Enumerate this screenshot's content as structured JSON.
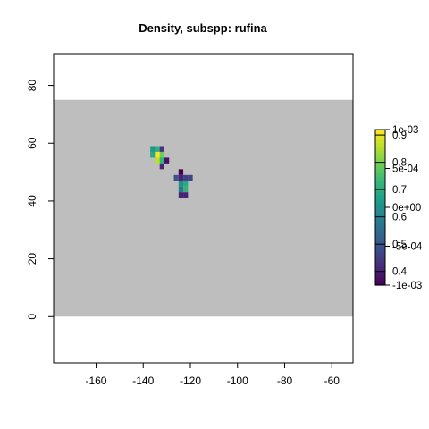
{
  "chart_data": {
    "type": "heatmap",
    "title": "Density, subspp: rufina",
    "xlabel": "",
    "ylabel": "",
    "xlim": [
      -178,
      -51
    ],
    "ylim": [
      -16,
      91
    ],
    "x_ticks": [
      -160,
      -140,
      -120,
      -100,
      -80,
      -60
    ],
    "y_ticks": [
      0,
      20,
      40,
      60,
      80
    ],
    "background_region": {
      "x": [
        -178,
        -51
      ],
      "y": [
        0,
        75
      ],
      "color": "#bebebe"
    },
    "cell_size": 2,
    "cells": [
      {
        "x": -136,
        "y": 58,
        "v": 5e-05
      },
      {
        "x": -134,
        "y": 58,
        "v": 0.00025
      },
      {
        "x": -132,
        "y": 58,
        "v": -0.0007
      },
      {
        "x": -136,
        "y": 56,
        "v": 0.0002
      },
      {
        "x": -134,
        "y": 56,
        "v": 0.001
      },
      {
        "x": -132,
        "y": 56,
        "v": 0.00055
      },
      {
        "x": -134,
        "y": 54,
        "v": 0.0008
      },
      {
        "x": -132,
        "y": 54,
        "v": 0.0003
      },
      {
        "x": -130,
        "y": 54,
        "v": -0.0009
      },
      {
        "x": -132,
        "y": 52,
        "v": -0.0008
      },
      {
        "x": -124,
        "y": 50,
        "v": -0.001
      },
      {
        "x": -124,
        "y": 48,
        "v": -0.0008
      },
      {
        "x": -122,
        "y": 48,
        "v": -0.0006
      },
      {
        "x": -120,
        "y": 48,
        "v": -0.0006
      },
      {
        "x": -126,
        "y": 48,
        "v": -0.0005
      },
      {
        "x": -124,
        "y": 46,
        "v": 0.0
      },
      {
        "x": -122,
        "y": 46,
        "v": 0.0002
      },
      {
        "x": -124,
        "y": 44,
        "v": -0.0002
      },
      {
        "x": -122,
        "y": 44,
        "v": 0.0003
      },
      {
        "x": -124,
        "y": 42,
        "v": -0.0008
      },
      {
        "x": -122,
        "y": 42,
        "v": -0.0008
      }
    ],
    "colorbar": {
      "colormap": "viridis",
      "range": [
        -0.001,
        0.001
      ],
      "labels_right": [
        "1e-03",
        "5e-04",
        "0e+00",
        "-5e-04",
        "-1e-03"
      ],
      "label_values_right": [
        0.001,
        0.0005,
        0.0,
        -0.0005,
        -0.001
      ],
      "labels_left": [
        "0.9",
        "0.8",
        "0.7",
        "0.6",
        "0.5",
        "0.4"
      ],
      "label_values_left": [
        0.9,
        0.8,
        0.7,
        0.6,
        0.5,
        0.4
      ],
      "left_scale_range": [
        0.35,
        0.92
      ]
    }
  }
}
